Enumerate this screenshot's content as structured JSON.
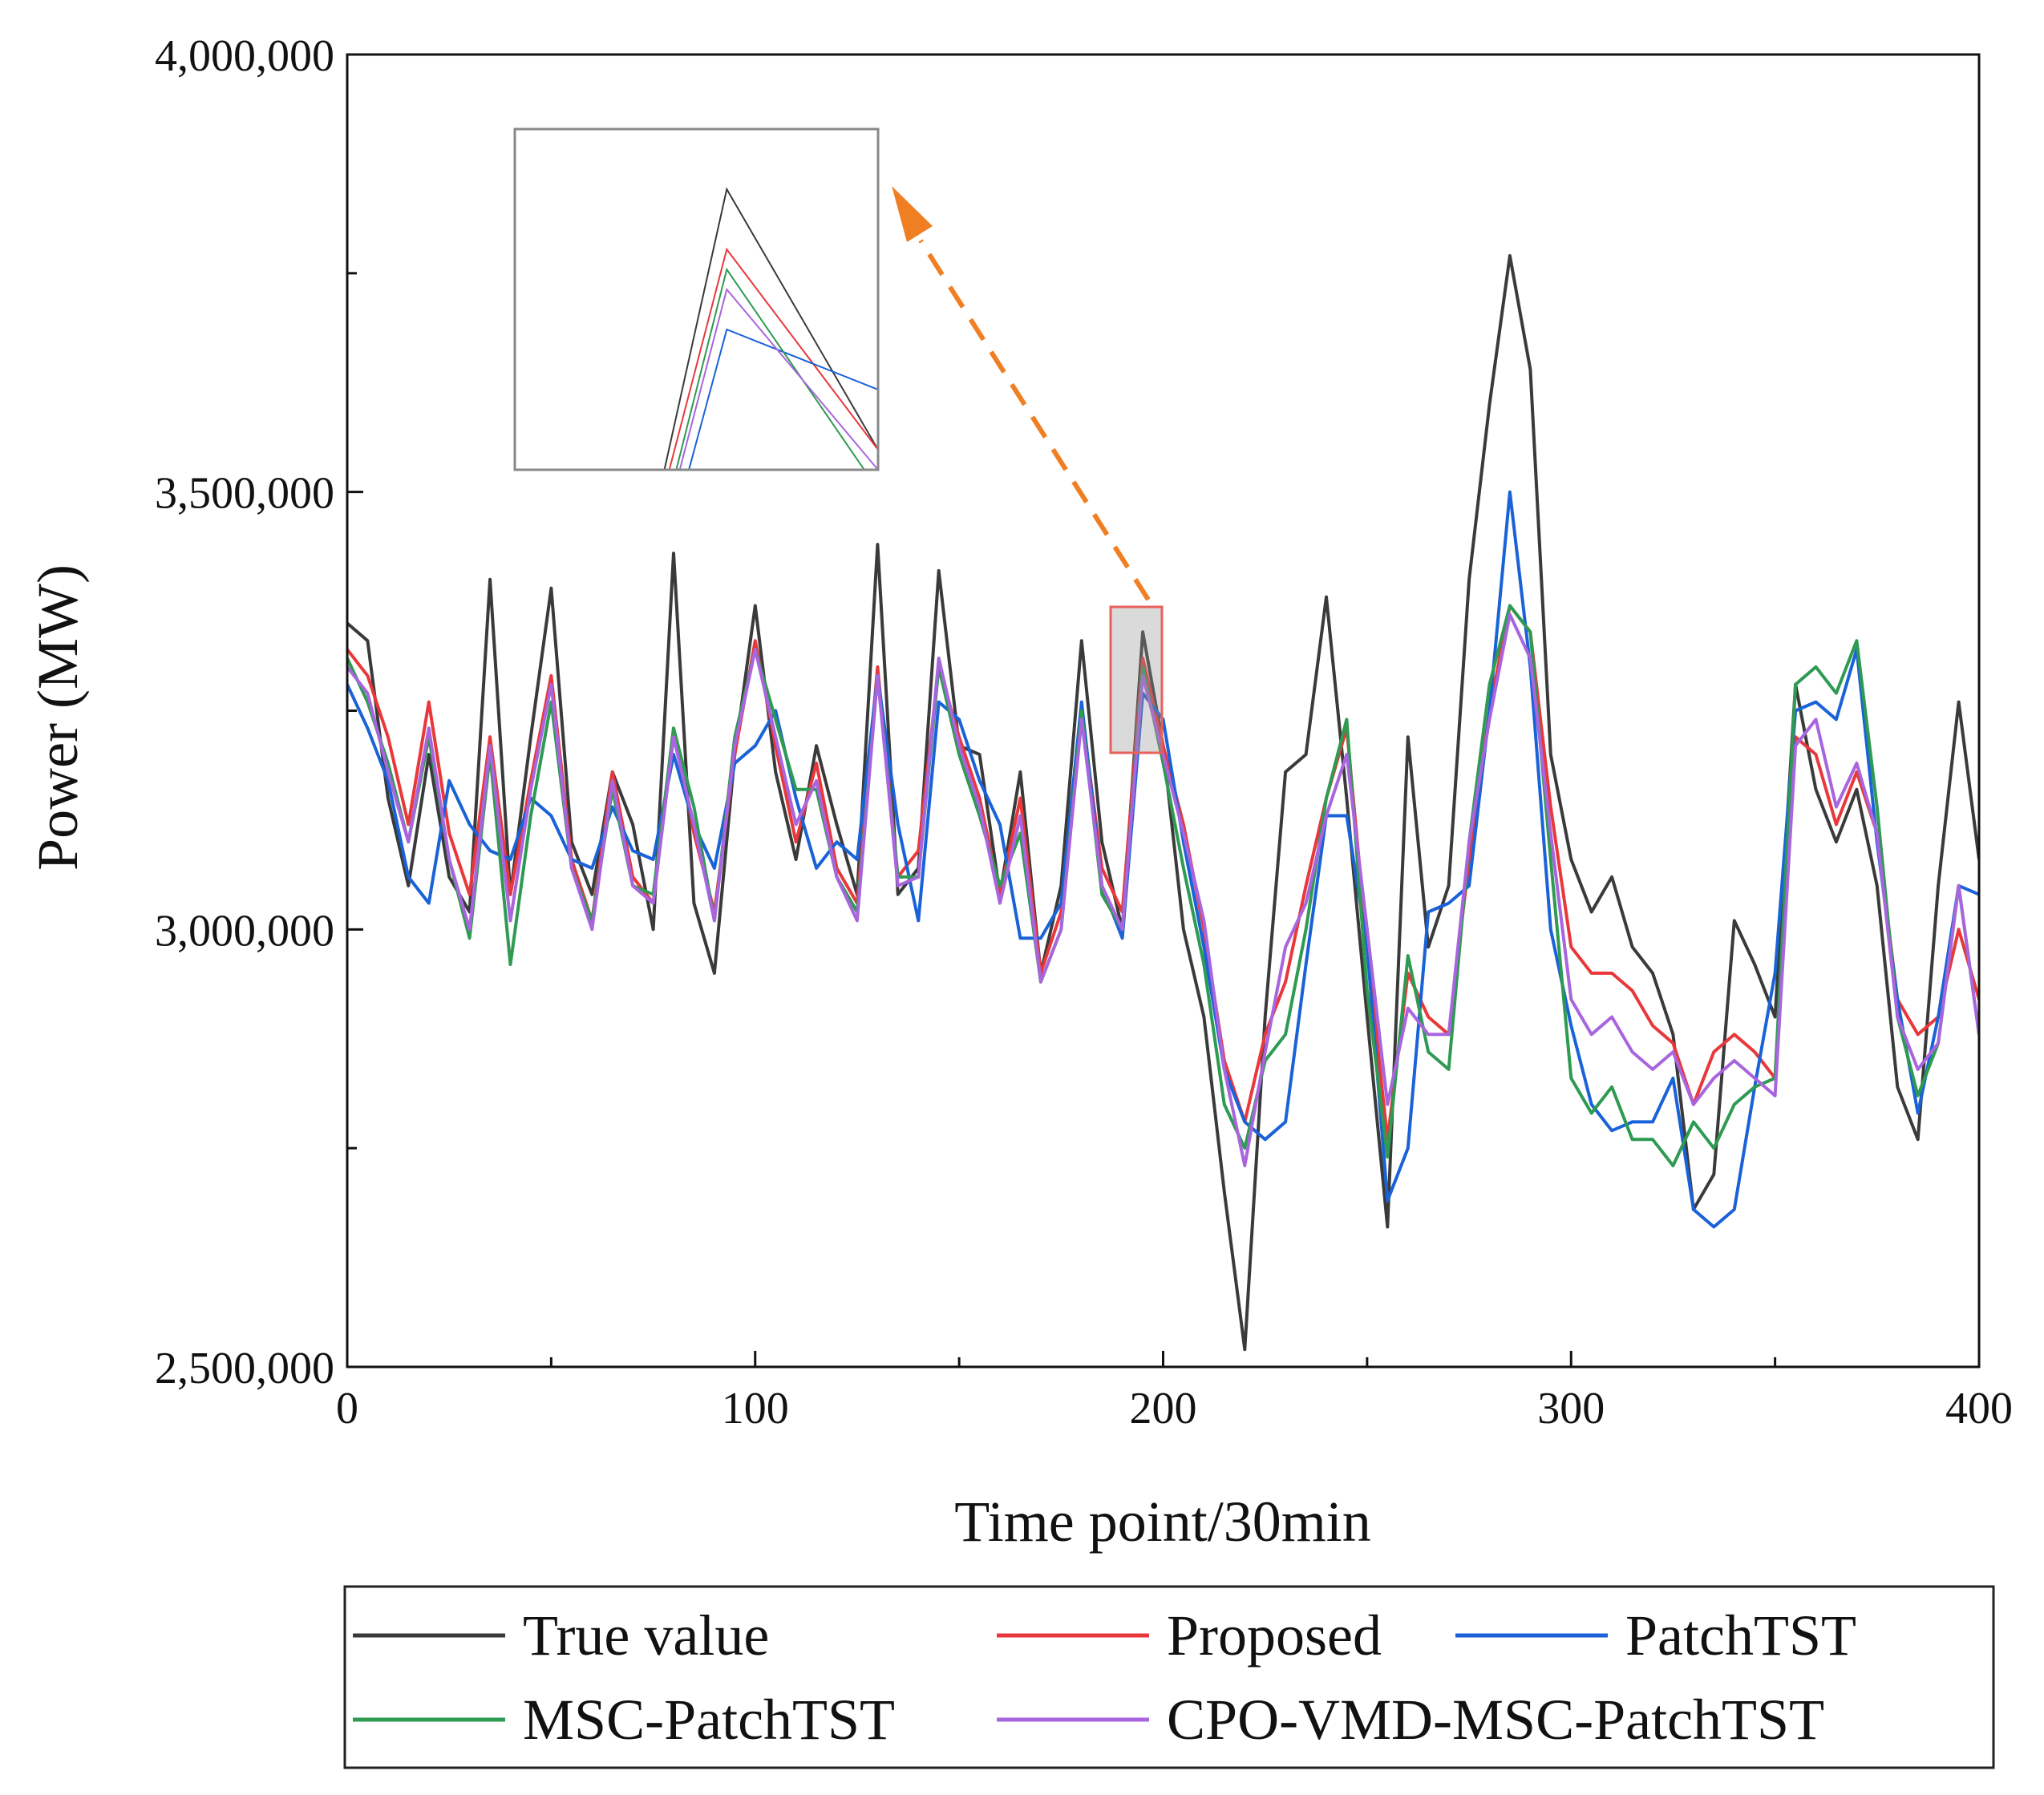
{
  "chart_data": {
    "type": "line",
    "title": "",
    "xlabel": "Time point/30min",
    "ylabel": "Power (MW)",
    "xlim": [
      0,
      400
    ],
    "ylim": [
      2500000,
      4000000
    ],
    "x_ticks": [
      0,
      100,
      200,
      300,
      400
    ],
    "x_tick_labels": [
      "0",
      "100",
      "200",
      "300",
      "400"
    ],
    "y_ticks": [
      2500000,
      3000000,
      3500000,
      4000000
    ],
    "y_tick_labels": [
      "2,500,000",
      "3,000,000",
      "3,500,000",
      "4,000,000"
    ],
    "grid": false,
    "legend_position": "bottom",
    "zoom_region": {
      "x": [
        188,
        200
      ],
      "y": [
        3200000,
        3370000
      ]
    },
    "x": [
      0,
      5,
      10,
      15,
      20,
      25,
      30,
      35,
      40,
      45,
      50,
      55,
      60,
      65,
      70,
      75,
      80,
      85,
      90,
      95,
      100,
      105,
      110,
      115,
      120,
      125,
      130,
      135,
      140,
      145,
      150,
      155,
      160,
      165,
      170,
      175,
      180,
      185,
      190,
      195,
      200,
      205,
      210,
      215,
      220,
      225,
      230,
      235,
      240,
      245,
      250,
      255,
      260,
      265,
      270,
      275,
      280,
      285,
      290,
      295,
      300,
      305,
      310,
      315,
      320,
      325,
      330,
      335,
      340,
      345,
      350,
      355,
      360,
      365,
      370,
      375,
      380,
      385,
      390,
      395,
      400
    ],
    "series": [
      {
        "name": "True value",
        "color": "#3a3a3a",
        "values": [
          3350000,
          3330000,
          3150000,
          3050000,
          3200000,
          3060000,
          3020000,
          3400000,
          3040000,
          3220000,
          3390000,
          3100000,
          3040000,
          3180000,
          3120000,
          3000000,
          3430000,
          3030000,
          2950000,
          3200000,
          3370000,
          3180000,
          3080000,
          3210000,
          3120000,
          3040000,
          3440000,
          3040000,
          3070000,
          3410000,
          3210000,
          3200000,
          3040000,
          3180000,
          2950000,
          3050000,
          3330000,
          3100000,
          3000000,
          3340000,
          3210000,
          3000000,
          2900000,
          2700000,
          2520000,
          2900000,
          3180000,
          3200000,
          3380000,
          3150000,
          2900000,
          2660000,
          3220000,
          2980000,
          3050000,
          3400000,
          3600000,
          3770000,
          3640000,
          3200000,
          3080000,
          3020000,
          3060000,
          2980000,
          2950000,
          2880000,
          2680000,
          2720000,
          3010000,
          2960000,
          2900000,
          3280000,
          3160000,
          3100000,
          3160000,
          3050000,
          2820000,
          2760000,
          3050000,
          3260000,
          3080000
        ]
      },
      {
        "name": "Proposed",
        "color": "#e8383b",
        "values": [
          3320000,
          3290000,
          3220000,
          3120000,
          3260000,
          3110000,
          3040000,
          3220000,
          3040000,
          3170000,
          3290000,
          3080000,
          3010000,
          3180000,
          3060000,
          3030000,
          3230000,
          3110000,
          3020000,
          3200000,
          3330000,
          3210000,
          3100000,
          3190000,
          3070000,
          3030000,
          3300000,
          3060000,
          3090000,
          3300000,
          3220000,
          3150000,
          3040000,
          3150000,
          2950000,
          3020000,
          3250000,
          3070000,
          3020000,
          3310000,
          3210000,
          3120000,
          3000000,
          2850000,
          2780000,
          2880000,
          2940000,
          3050000,
          3150000,
          3230000,
          2980000,
          2760000,
          2950000,
          2900000,
          2880000,
          3080000,
          3250000,
          3370000,
          3340000,
          3140000,
          2980000,
          2950000,
          2950000,
          2930000,
          2890000,
          2870000,
          2800000,
          2860000,
          2880000,
          2860000,
          2830000,
          3220000,
          3200000,
          3120000,
          3180000,
          3110000,
          2920000,
          2880000,
          2900000,
          3000000,
          2920000
        ]
      },
      {
        "name": "PatchTST",
        "color": "#1a62d8",
        "values": [
          3280000,
          3230000,
          3170000,
          3060000,
          3030000,
          3170000,
          3120000,
          3090000,
          3080000,
          3150000,
          3130000,
          3080000,
          3070000,
          3140000,
          3090000,
          3080000,
          3200000,
          3120000,
          3070000,
          3190000,
          3210000,
          3250000,
          3150000,
          3070000,
          3100000,
          3080000,
          3290000,
          3120000,
          3010000,
          3260000,
          3240000,
          3170000,
          3120000,
          2990000,
          2990000,
          3030000,
          3260000,
          3050000,
          2990000,
          3270000,
          3240000,
          3100000,
          2980000,
          2840000,
          2780000,
          2760000,
          2780000,
          2960000,
          3130000,
          3130000,
          2980000,
          2690000,
          2750000,
          3020000,
          3030000,
          3050000,
          3250000,
          3500000,
          3300000,
          3000000,
          2890000,
          2800000,
          2770000,
          2780000,
          2780000,
          2830000,
          2680000,
          2660000,
          2680000,
          2820000,
          2950000,
          3250000,
          3260000,
          3240000,
          3320000,
          3100000,
          2920000,
          2790000,
          2900000,
          3050000,
          3040000
        ]
      },
      {
        "name": "MSC-PatchTST",
        "color": "#2e9a52",
        "values": [
          3310000,
          3260000,
          3190000,
          3100000,
          3220000,
          3080000,
          2990000,
          3200000,
          2960000,
          3130000,
          3260000,
          3070000,
          3010000,
          3160000,
          3050000,
          3040000,
          3230000,
          3140000,
          3010000,
          3220000,
          3320000,
          3240000,
          3160000,
          3160000,
          3060000,
          3020000,
          3290000,
          3060000,
          3060000,
          3300000,
          3200000,
          3130000,
          3050000,
          3110000,
          2940000,
          3000000,
          3250000,
          3040000,
          3000000,
          3300000,
          3190000,
          3070000,
          2960000,
          2800000,
          2750000,
          2850000,
          2880000,
          3000000,
          3150000,
          3240000,
          2930000,
          2740000,
          2970000,
          2860000,
          2840000,
          3100000,
          3280000,
          3370000,
          3340000,
          3080000,
          2830000,
          2790000,
          2820000,
          2760000,
          2760000,
          2730000,
          2780000,
          2750000,
          2800000,
          2820000,
          2830000,
          3280000,
          3300000,
          3270000,
          3330000,
          3140000,
          2900000,
          2810000,
          2870000,
          3050000,
          2880000
        ]
      },
      {
        "name": "CPO-VMD-MSC-PatchTST",
        "color": "#a865de",
        "values": [
          3300000,
          3270000,
          3180000,
          3100000,
          3230000,
          3080000,
          3000000,
          3210000,
          3010000,
          3160000,
          3280000,
          3070000,
          3000000,
          3170000,
          3050000,
          3030000,
          3220000,
          3120000,
          3010000,
          3210000,
          3320000,
          3220000,
          3120000,
          3170000,
          3060000,
          3010000,
          3290000,
          3050000,
          3060000,
          3310000,
          3210000,
          3140000,
          3030000,
          3130000,
          2940000,
          3000000,
          3240000,
          3050000,
          3000000,
          3290000,
          3200000,
          3110000,
          3010000,
          2840000,
          2730000,
          2860000,
          2980000,
          3030000,
          3130000,
          3200000,
          3000000,
          2800000,
          2910000,
          2880000,
          2880000,
          3100000,
          3240000,
          3360000,
          3310000,
          3110000,
          2920000,
          2880000,
          2900000,
          2860000,
          2840000,
          2860000,
          2800000,
          2830000,
          2850000,
          2830000,
          2810000,
          3210000,
          3240000,
          3140000,
          3190000,
          3110000,
          2900000,
          2840000,
          2870000,
          3050000,
          2880000
        ]
      }
    ]
  }
}
